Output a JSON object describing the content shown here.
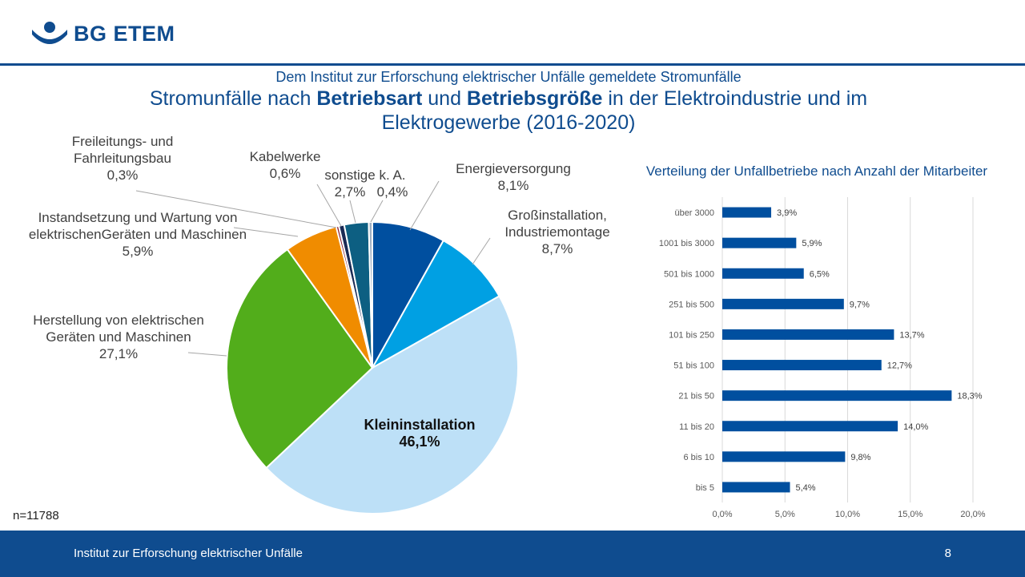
{
  "header": {
    "logo_text": "BG ETEM",
    "brand_color": "#0f4c8f"
  },
  "slide": {
    "subtitle": "Dem Institut zur Erforschung elektrischer Unfälle gemeldete Stromunfälle",
    "title_parts": {
      "t1": "Stromunfälle nach ",
      "t2": "Betriebsart",
      "t3": " und ",
      "t4": "Betriebsgröße",
      "t5": " in der Elektroindustrie und im Elektrogewerbe (2016-2020)"
    },
    "n_label": "n=11788"
  },
  "chart_data": [
    {
      "type": "pie",
      "title": "",
      "slices": [
        {
          "label": "Energieversorgung",
          "value": 8.1,
          "display": "8,1%",
          "color": "#004f9f"
        },
        {
          "label": "Großinstallation, Industriemontage",
          "value": 8.7,
          "display": "8,7%",
          "color": "#00a0e3"
        },
        {
          "label": "Kleininstallation",
          "value": 46.1,
          "display": "46,1%",
          "color": "#bde0f7"
        },
        {
          "label": "Herstellung von elektrischen Geräten und Maschinen",
          "value": 27.1,
          "display": "27,1%",
          "color": "#52ad1b"
        },
        {
          "label": "Instandsetzung und Wartung von elektrischenGeräten und Maschinen",
          "value": 5.9,
          "display": "5,9%",
          "color": "#f08c00"
        },
        {
          "label": "Freileitungs- und Fahrleitungsbau",
          "value": 0.3,
          "display": "0,3%",
          "color": "#8a1c2c"
        },
        {
          "label": "Kabelwerke",
          "value": 0.6,
          "display": "0,6%",
          "color": "#1a2a55"
        },
        {
          "label": "sonstige",
          "value": 2.7,
          "display": "2,7%",
          "color": "#0d5f82"
        },
        {
          "label": "k. A.",
          "value": 0.4,
          "display": "0,4%",
          "color": "#9fb0c4"
        }
      ]
    },
    {
      "type": "bar",
      "orientation": "horizontal",
      "title": "Verteilung der Unfallbetriebe nach Anzahl der Mitarbeiter",
      "categories": [
        "über 3000",
        "1001 bis 3000",
        "501 bis 1000",
        "251 bis 500",
        "101 bis 250",
        "51 bis 100",
        "21 bis 50",
        "11 bis 20",
        "6 bis 10",
        "bis 5"
      ],
      "values": [
        3.9,
        5.9,
        6.5,
        9.7,
        13.7,
        12.7,
        18.3,
        14.0,
        9.8,
        5.4
      ],
      "value_labels": [
        "3,9%",
        "5,9%",
        "6,5%",
        "9,7%",
        "13,7%",
        "12,7%",
        "18,3%",
        "14,0%",
        "9,8%",
        "5,4%"
      ],
      "xlim": [
        0,
        20
      ],
      "xticks": [
        0,
        5,
        10,
        15,
        20
      ],
      "xtick_labels": [
        "0,0%",
        "5,0%",
        "10,0%",
        "15,0%",
        "20,0%"
      ],
      "grid": true,
      "bar_color": "#004f9f"
    }
  ],
  "footer": {
    "text": "Institut zur Erforschung elektrischer Unfälle",
    "page": "8"
  }
}
